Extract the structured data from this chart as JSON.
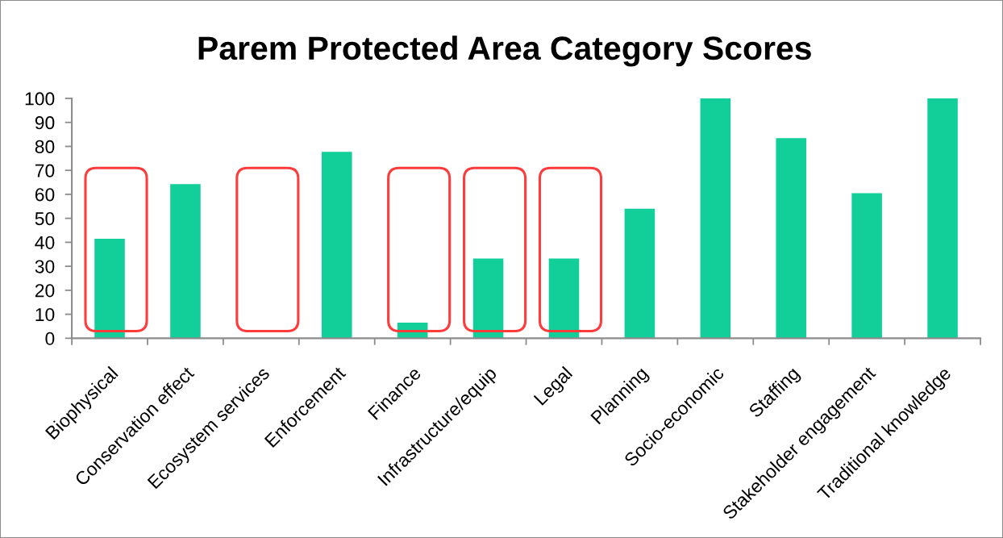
{
  "chart_data": {
    "type": "bar",
    "title": "Parem Protected Area Category Scores",
    "categories": [
      "Biophysical",
      "Conservation effect",
      "Ecosystem services",
      "Enforcement",
      "Finance",
      "Infrastructure/equip",
      "Legal",
      "Planning",
      "Socio-economic",
      "Staffing",
      "Stakeholder engagement",
      "Traditional knowledge"
    ],
    "values": [
      41.5,
      64.3,
      null,
      77.7,
      6.5,
      33.2,
      33.2,
      54,
      100,
      83.4,
      60.5,
      100
    ],
    "color": "#12cf9a",
    "ylim": [
      0,
      100
    ],
    "yticks": [
      0,
      10,
      20,
      30,
      40,
      50,
      60,
      70,
      80,
      90,
      100
    ]
  }
}
